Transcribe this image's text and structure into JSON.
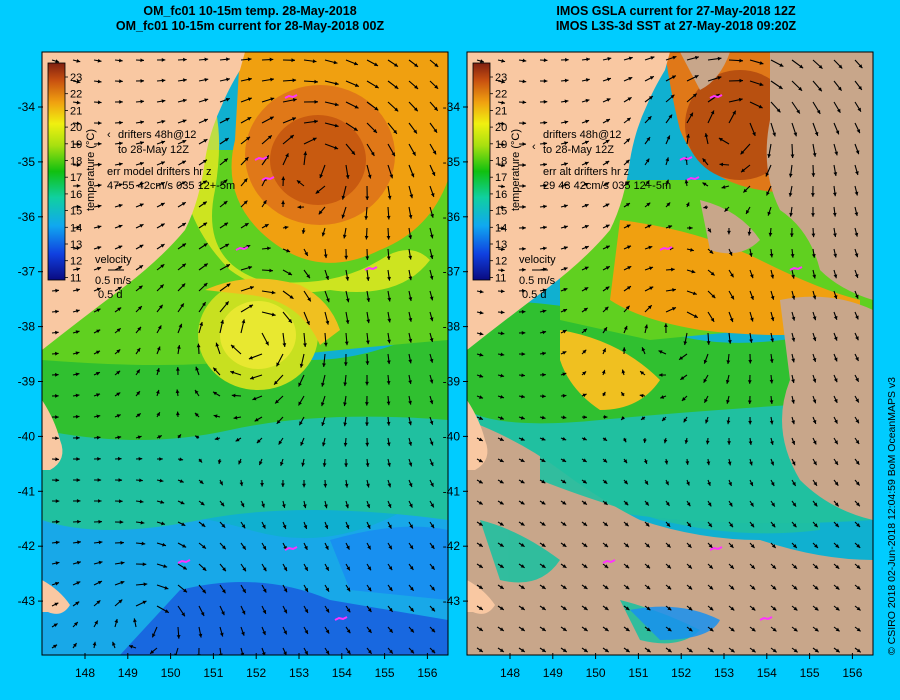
{
  "panels": [
    {
      "id": "left",
      "title_line1": "OM_fc01 10-15m temp. 28-May-2018",
      "title_line2": "OM_fc01 10-15m current for 28-May-2018 00Z",
      "drifters_label_1": "drifters 48h@12",
      "drifters_label_2": "to 28-May 12Z",
      "err_label_1": "err model drifters hr z",
      "err_label_2": "47 55 42cm/s 035 12+-5m"
    },
    {
      "id": "right",
      "title_line1": "IMOS GSLA current for 27-May-2018 12Z",
      "title_line2": "IMOS L3S-3d SST at 27-May-2018 09:20Z",
      "drifters_label_1": "drifters 48h@12",
      "drifters_label_2": "to 28-May 12Z",
      "err_label_1": "err alt drifters hr z",
      "err_label_2": "29 43 42cm/s 035 12+-5m"
    }
  ],
  "colorbar": {
    "ticks": [
      "23",
      "22",
      "21",
      "20",
      "19",
      "18",
      "17",
      "16",
      "15",
      "14",
      "13",
      "12",
      "11"
    ],
    "label": "temperature (°C)"
  },
  "velocity_legend": {
    "title": "velocity",
    "speed": "0.5 m/s",
    "duration": "0.5 d"
  },
  "axes": {
    "lat_ticks": [
      "-34",
      "-35",
      "-36",
      "-37",
      "-38",
      "-39",
      "-40",
      "-41",
      "-42",
      "-43"
    ],
    "lon_ticks": [
      "148",
      "149",
      "150",
      "151",
      "152",
      "153",
      "154",
      "155",
      "156"
    ]
  },
  "credit": "© CSIRO 2018   02-Jun-2018 12:04:59 BoM OceanMAPS v3",
  "colors": {
    "background": "#00ccff",
    "land": "#f9c8a2",
    "cloud_mask": "#c8a68a",
    "drifter": "#ff33ff"
  }
}
